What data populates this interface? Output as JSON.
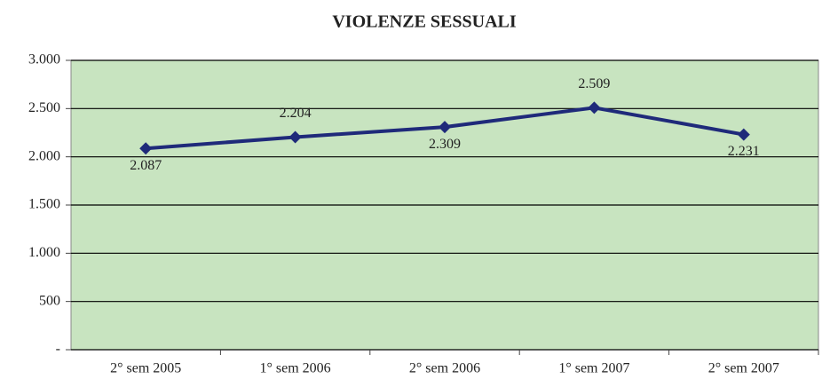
{
  "chart_data": {
    "type": "line",
    "title": "VIOLENZE SESSUALI",
    "categories": [
      "2° sem 2005",
      "1° sem 2006",
      "2° sem 2006",
      "1° sem 2007",
      "2° sem 2007"
    ],
    "values": [
      2087,
      2204,
      2309,
      2509,
      2231
    ],
    "value_labels": [
      "2.087",
      "2.204",
      "2.309",
      "2.509",
      "2.231"
    ],
    "color": "#1f2a7a",
    "ylim": [
      0,
      3000
    ],
    "yticks": [
      {
        "value": 0,
        "label": "-"
      },
      500,
      {
        "value": 1000,
        "label": "1.000"
      },
      {
        "value": 1500,
        "label": "1.500"
      },
      {
        "value": 2000,
        "label": "2.000"
      },
      {
        "value": 2500,
        "label": "2.500"
      },
      {
        "value": 3000,
        "label": "3.000"
      }
    ],
    "grid": true
  }
}
